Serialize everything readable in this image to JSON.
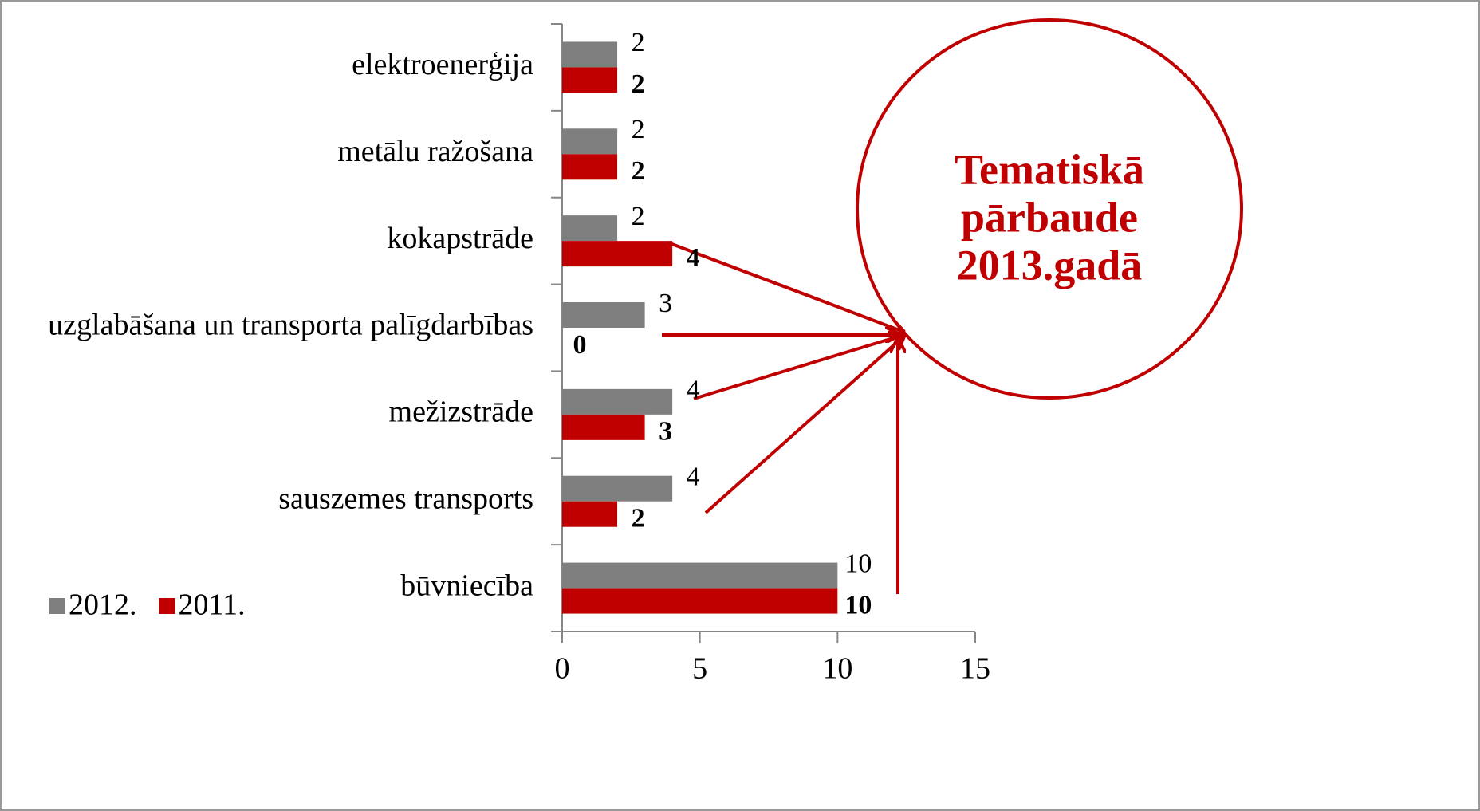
{
  "chart_data": {
    "type": "bar",
    "orientation": "horizontal",
    "categories": [
      "elektroenerģija",
      "metālu ražošana",
      "kokapstrāde",
      "uzglabāšana un transporta palīgdarbības",
      "mežizstrāde",
      "sauszemes transports",
      "būvniecība"
    ],
    "series": [
      {
        "name": "2012.",
        "color": "#7f7f7f",
        "values": [
          2,
          2,
          2,
          3,
          4,
          4,
          10
        ]
      },
      {
        "name": "2011.",
        "color": "#c00000",
        "values": [
          2,
          2,
          4,
          0,
          3,
          2,
          10
        ]
      }
    ],
    "xlim": [
      0,
      15
    ],
    "xticks": [
      0,
      5,
      10,
      15
    ],
    "legend": "lower left",
    "annotation": [
      "Tematiskā",
      "pārbaude",
      "2013.gadā"
    ]
  }
}
